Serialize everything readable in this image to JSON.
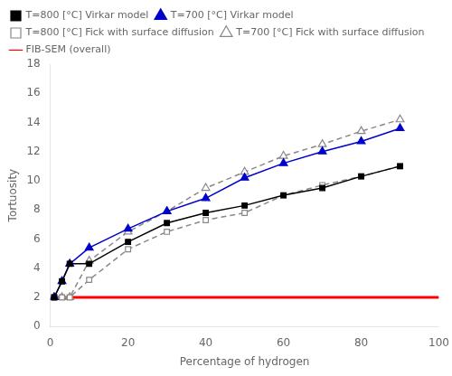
{
  "chart_data": {
    "type": "line",
    "x": [
      1,
      3,
      5,
      10,
      20,
      30,
      40,
      50,
      60,
      70,
      80,
      90
    ],
    "series": [
      {
        "name": "T=800 [°C] Virkar model",
        "color": "#000000",
        "marker": "square",
        "line_style": "solid",
        "values": [
          2.0,
          3.1,
          4.3,
          4.3,
          5.8,
          7.1,
          7.8,
          8.3,
          9.0,
          9.5,
          10.3,
          11.0
        ]
      },
      {
        "name": "T=700 [°C] Virkar model",
        "color": "#0000cc",
        "marker": "triangle",
        "line_style": "solid",
        "values": [
          2.0,
          3.1,
          4.3,
          5.4,
          6.7,
          7.9,
          8.8,
          10.2,
          11.2,
          12.0,
          12.7,
          13.6
        ]
      },
      {
        "name": "T=800 [°C] Fick with surface diffusion",
        "color": "#888888",
        "marker": "open-square",
        "line_style": "dashed",
        "values": [
          2.0,
          2.0,
          2.0,
          3.2,
          5.3,
          6.5,
          7.3,
          7.8,
          9.0,
          9.7,
          10.3,
          11.0
        ]
      },
      {
        "name": "T=700 [°C] Fick with surface diffusion",
        "color": "#888888",
        "marker": "open-triangle",
        "line_style": "dashed",
        "values": [
          2.0,
          2.0,
          2.0,
          4.5,
          6.5,
          7.9,
          9.5,
          10.6,
          11.7,
          12.5,
          13.4,
          14.2
        ]
      },
      {
        "name": "FIB-SEM (overall)",
        "color": "#ff0000",
        "marker": "none",
        "line_style": "solid",
        "x": [
          0,
          100
        ],
        "values": [
          2.0,
          2.0
        ]
      }
    ],
    "xlabel": "Percentage of hydrogen",
    "ylabel": "Tortuosity",
    "xlim": [
      0,
      100
    ],
    "ylim": [
      0,
      18
    ],
    "xticks": [
      0,
      20,
      40,
      60,
      80,
      100
    ],
    "yticks": [
      0,
      2,
      4,
      6,
      8,
      10,
      12,
      14,
      16,
      18
    ],
    "grid": false,
    "legend": "upper left"
  }
}
